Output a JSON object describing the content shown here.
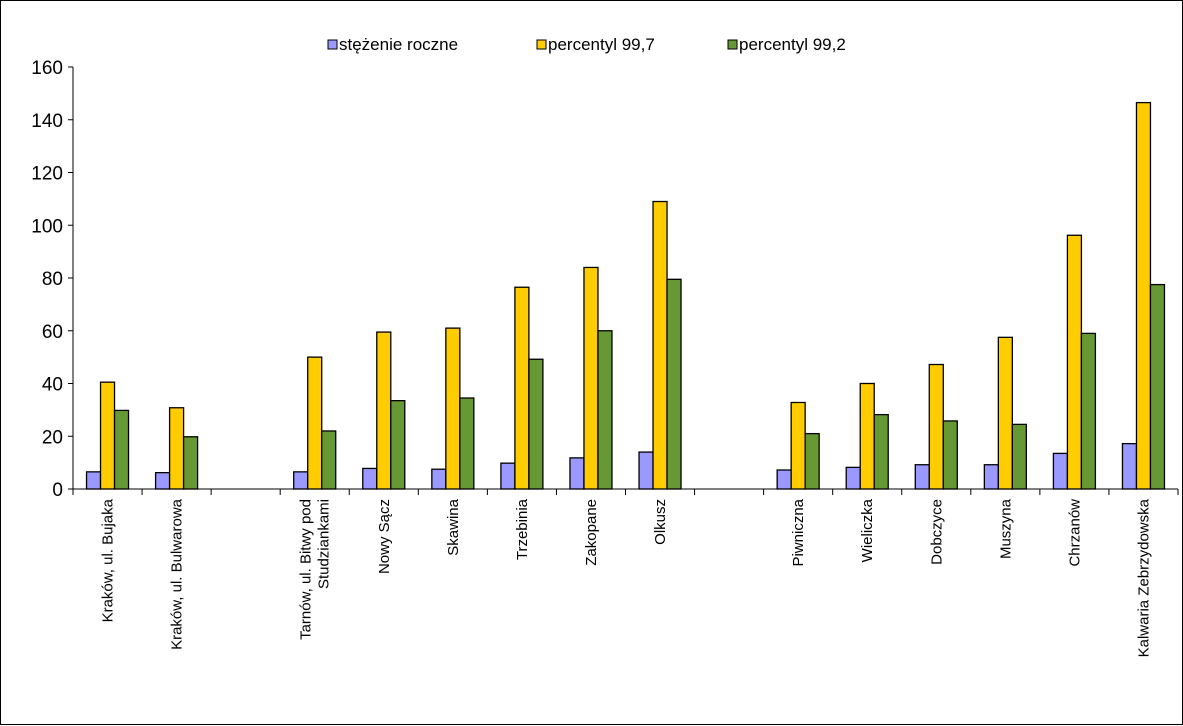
{
  "chart_data": {
    "type": "bar",
    "title": "",
    "xlabel": "",
    "ylabel": "",
    "ylim": [
      0,
      160
    ],
    "yticks": [
      "0",
      "20",
      "40",
      "60",
      "80",
      "100",
      "120",
      "140",
      "160"
    ],
    "grid": false,
    "legend_position": "top",
    "categories": [
      [
        "Kraków, ul. Bujaka"
      ],
      [
        "Kraków, ul. Bulwarowa"
      ],
      [],
      [
        "Tarnów, ul. Bitwy pod",
        "Studziankami"
      ],
      [
        "Nowy Sącz"
      ],
      [
        "Skawina"
      ],
      [
        "Trzebinia"
      ],
      [
        "Zakopane"
      ],
      [
        "Olkusz"
      ],
      [],
      [
        "Piwniczna"
      ],
      [
        "Wieliczka"
      ],
      [
        "Dobczyce"
      ],
      [
        "Muszyna"
      ],
      [
        "Chrzanów"
      ],
      [
        "Kalwaria Zebrzydowska"
      ]
    ],
    "series": [
      {
        "name": "stężenie roczne",
        "color": "#9999FF",
        "values": [
          6.5,
          6.2,
          null,
          6.5,
          7.8,
          7.5,
          9.8,
          11.8,
          14.0,
          null,
          7.2,
          8.2,
          9.2,
          9.2,
          13.5,
          17.2
        ]
      },
      {
        "name": "percentyl 99,7",
        "color": "#FFCC00",
        "values": [
          40.5,
          30.8,
          null,
          50.0,
          59.5,
          61.0,
          76.5,
          84.0,
          109.0,
          null,
          32.8,
          40.0,
          47.2,
          57.5,
          96.2,
          146.5
        ]
      },
      {
        "name": "percentyl 99,2",
        "color": "#669933",
        "values": [
          29.8,
          19.8,
          null,
          22.0,
          33.5,
          34.5,
          49.2,
          60.0,
          79.5,
          null,
          21.0,
          28.2,
          25.8,
          24.5,
          59.0,
          77.5
        ]
      }
    ]
  }
}
